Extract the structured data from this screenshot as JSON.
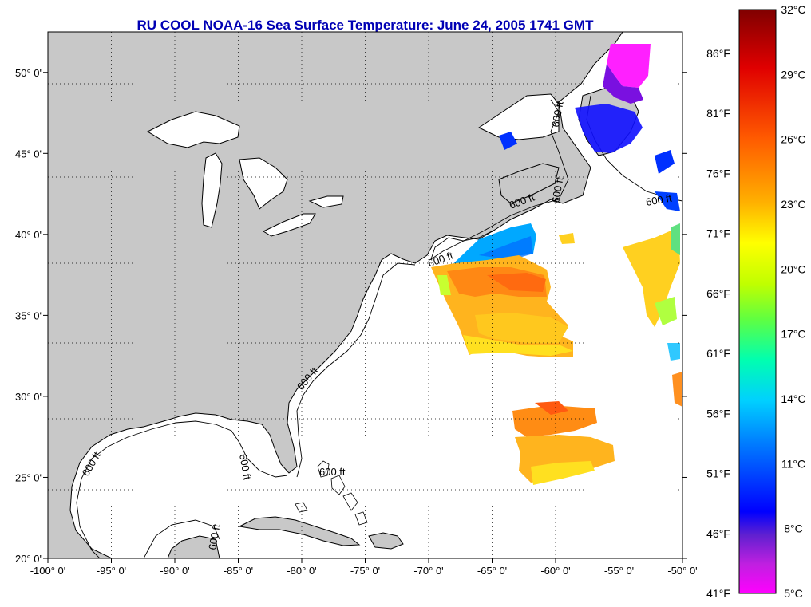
{
  "title": "RU COOL  NOAA-16  Sea Surface Temperature:  June 24, 2005 1741 GMT",
  "map": {
    "lon_range": [
      -100,
      -50
    ],
    "lat_range": [
      20,
      52.5
    ],
    "lon_ticks": [
      {
        "value": -100,
        "label": "-100° 0'"
      },
      {
        "value": -95,
        "label": "-95° 0'"
      },
      {
        "value": -90,
        "label": "-90° 0'"
      },
      {
        "value": -85,
        "label": "-85° 0'"
      },
      {
        "value": -80,
        "label": "-80° 0'"
      },
      {
        "value": -75,
        "label": "-75° 0'"
      },
      {
        "value": -70,
        "label": "-70° 0'"
      },
      {
        "value": -65,
        "label": "-65° 0'"
      },
      {
        "value": -60,
        "label": "-60° 0'"
      },
      {
        "value": -55,
        "label": "-55° 0'"
      },
      {
        "value": -50,
        "label": "-50° 0'"
      }
    ],
    "lat_ticks": [
      {
        "value": 20,
        "label": "20° 0'"
      },
      {
        "value": 25,
        "label": "25° 0'"
      },
      {
        "value": 30,
        "label": "30° 0'"
      },
      {
        "value": 35,
        "label": "35° 0'"
      },
      {
        "value": 40,
        "label": "40° 0'"
      },
      {
        "value": 45,
        "label": "45° 0'"
      },
      {
        "value": 50,
        "label": "50° 0'"
      }
    ],
    "contour_label": "600 ft",
    "colors": {
      "land": "#c8c8c8",
      "ocean": "#ffffff",
      "coast": "#000000",
      "grid": "#000000"
    }
  },
  "colorbar": {
    "celsius_range": [
      5,
      32
    ],
    "celsius_labels": [
      "32°C",
      "29°C",
      "26°C",
      "23°C",
      "20°C",
      "17°C",
      "14°C",
      "11°C",
      "8°C",
      "5°C"
    ],
    "fahrenheit_labels": [
      "86°F",
      "81°F",
      "76°F",
      "71°F",
      "66°F",
      "61°F",
      "56°F",
      "51°F",
      "46°F",
      "41°F"
    ],
    "color_stops": [
      "#800000",
      "#ff0000",
      "#ff8c00",
      "#ffff00",
      "#80ff00",
      "#00ffc0",
      "#00a0ff",
      "#0000ff",
      "#8000c0",
      "#ff00ff"
    ]
  }
}
